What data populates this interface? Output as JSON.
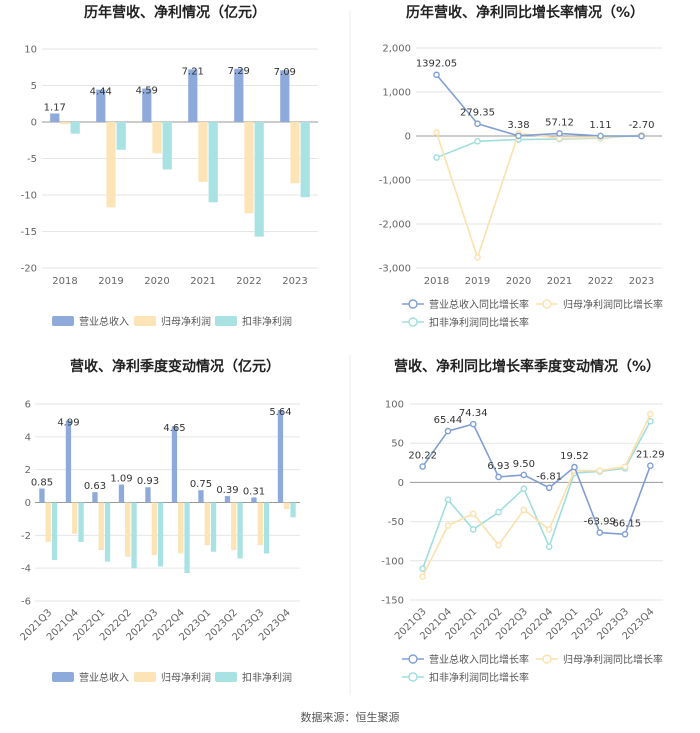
{
  "footer": {
    "source": "数据来源：恒生聚源"
  },
  "colors": {
    "revenue": "#8eaadb",
    "net": "#fde4b7",
    "deduct": "#a8e2e2",
    "revenue_line": "#7f9fd4",
    "net_line": "#fce0ad",
    "deduct_line": "#9fdedd",
    "grid": "#e6e6e6",
    "zero": "#999999"
  },
  "chart_data": [
    {
      "id": "annual-bars",
      "type": "bar",
      "title": "历年营收、净利情况（亿元）",
      "categories": [
        "2018",
        "2019",
        "2020",
        "2021",
        "2022",
        "2023"
      ],
      "series": [
        {
          "name": "营业总收入",
          "values": [
            1.17,
            4.44,
            4.59,
            7.21,
            7.29,
            7.09
          ]
        },
        {
          "name": "归母净利润",
          "values": [
            -0.3,
            -11.7,
            -4.3,
            -8.2,
            -12.5,
            -8.4
          ]
        },
        {
          "name": "扣非净利润",
          "values": [
            -1.6,
            -3.8,
            -6.5,
            -11.0,
            -15.7,
            -10.3
          ]
        }
      ],
      "data_labels": [
        "1.17",
        "4.44",
        "4.59",
        "7.21",
        "7.29",
        "7.09"
      ],
      "yticks": [
        "10",
        "5",
        "0",
        "-5",
        "-10",
        "-15",
        "-20"
      ],
      "ylim": [
        -20,
        10
      ],
      "legend": [
        "营业总收入",
        "归母净利润",
        "扣非净利润"
      ]
    },
    {
      "id": "annual-growth",
      "type": "line",
      "title": "历年营收、净利同比增长率情况（%）",
      "categories": [
        "2018",
        "2019",
        "2020",
        "2021",
        "2022",
        "2023"
      ],
      "series": [
        {
          "name": "营业总收入同比增长率",
          "values": [
            1392.05,
            279.35,
            3.38,
            57.12,
            1.11,
            -2.7
          ]
        },
        {
          "name": "归母净利润同比增长率",
          "values": [
            80,
            -2760,
            60,
            -50,
            -40,
            20
          ]
        },
        {
          "name": "扣非净利润同比增长率",
          "values": [
            -490,
            -120,
            -80,
            -70,
            -50,
            20
          ]
        }
      ],
      "data_labels": [
        "1392.05",
        "279.35",
        "3.38",
        "57.12",
        "1.11",
        "-2.70"
      ],
      "yticks": [
        "2,000",
        "1,000",
        "0",
        "-1,000",
        "-2,000",
        "-3,000"
      ],
      "ylim": [
        -3000,
        2000
      ],
      "legend": [
        "营业总收入同比增长率",
        "归母净利润同比增长率",
        "扣非净利润同比增长率"
      ]
    },
    {
      "id": "quarter-bars",
      "type": "bar",
      "title": "营收、净利季度变动情况（亿元）",
      "categories": [
        "2021Q3",
        "2021Q4",
        "2022Q1",
        "2022Q2",
        "2022Q3",
        "2022Q4",
        "2023Q1",
        "2023Q2",
        "2023Q3",
        "2023Q4"
      ],
      "series": [
        {
          "name": "营业总收入",
          "values": [
            0.85,
            4.99,
            0.63,
            1.09,
            0.93,
            4.65,
            0.75,
            0.39,
            0.31,
            5.64
          ]
        },
        {
          "name": "归母净利润",
          "values": [
            -2.4,
            -1.9,
            -2.9,
            -3.3,
            -3.2,
            -3.1,
            -2.6,
            -2.9,
            -2.6,
            -0.4
          ]
        },
        {
          "name": "扣非净利润",
          "values": [
            -3.5,
            -2.4,
            -3.6,
            -4.0,
            -3.9,
            -4.3,
            -3.0,
            -3.4,
            -3.1,
            -0.9
          ]
        }
      ],
      "data_labels": [
        "0.85",
        "4.99",
        "0.63",
        "1.09",
        "0.93",
        "4.65",
        "0.75",
        "0.39",
        "0.31",
        "5.64"
      ],
      "yticks": [
        "6",
        "4",
        "2",
        "0",
        "-2",
        "-4",
        "-6"
      ],
      "ylim": [
        -6,
        6
      ],
      "legend": [
        "营业总收入",
        "归母净利润",
        "扣非净利润"
      ]
    },
    {
      "id": "quarter-growth",
      "type": "line",
      "title": "营收、净利同比增长率季度变动情况（%）",
      "categories": [
        "2021Q3",
        "2021Q4",
        "2022Q1",
        "2022Q2",
        "2022Q3",
        "2022Q4",
        "2023Q1",
        "2023Q2",
        "2023Q3",
        "2023Q4"
      ],
      "series": [
        {
          "name": "营业总收入同比增长率",
          "values": [
            20.22,
            65.44,
            74.34,
            6.93,
            9.5,
            -6.81,
            19.52,
            -63.99,
            -66.15,
            21.29
          ]
        },
        {
          "name": "归母净利润同比增长率",
          "values": [
            -120,
            -55,
            -40,
            -80,
            -35,
            -60,
            15,
            15,
            20,
            87
          ]
        },
        {
          "name": "扣非净利润同比增长率",
          "values": [
            -110,
            -22,
            -60,
            -38,
            -8,
            -82,
            12,
            14,
            18,
            78
          ]
        }
      ],
      "data_labels": [
        "20.22",
        "65.44",
        "74.34",
        "6.93",
        "9.50",
        "-6.81",
        "19.52",
        "-63.99",
        "-66.15",
        "21.29"
      ],
      "yticks": [
        "100",
        "50",
        "0",
        "-50",
        "-100",
        "-150"
      ],
      "ylim": [
        -150,
        100
      ],
      "legend": [
        "营业总收入同比增长率",
        "归母净利润同比增长率",
        "扣非净利润同比增长率"
      ]
    }
  ]
}
